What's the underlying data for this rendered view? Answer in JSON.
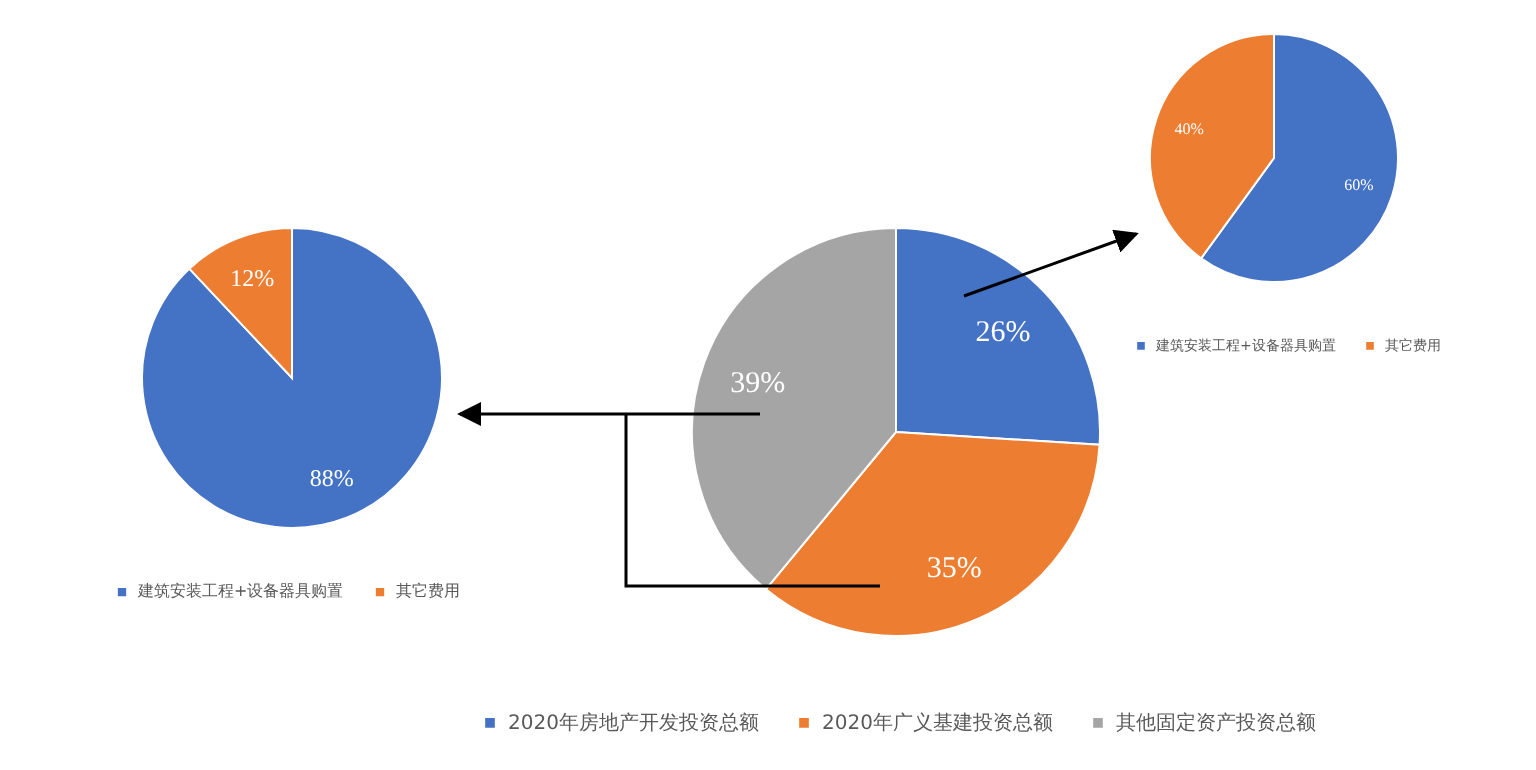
{
  "chart_data": [
    {
      "type": "pie",
      "categories": [
        "建筑安装工程+设备器具购置",
        "其它费用"
      ],
      "values": [
        88,
        12
      ],
      "colors": [
        "#4472c4",
        "#ed7d31"
      ],
      "value_labels": [
        "88%",
        "12%"
      ],
      "legend": "bottom"
    },
    {
      "type": "pie",
      "categories": [
        "2020年房地产开发投资总额",
        "2020年广义基建投资总额",
        "其他固定资产投资总额"
      ],
      "values": [
        26,
        35,
        39
      ],
      "colors": [
        "#4472c4",
        "#ed7d31",
        "#a5a5a5"
      ],
      "value_labels": [
        "26%",
        "35%",
        "39%"
      ],
      "legend": "bottom"
    },
    {
      "type": "pie",
      "categories": [
        "建筑安装工程+设备器具购置",
        "其它费用"
      ],
      "values": [
        60,
        40
      ],
      "colors": [
        "#4472c4",
        "#ed7d31"
      ],
      "value_labels": [
        "60%",
        "40%"
      ],
      "legend": "bottom"
    }
  ]
}
